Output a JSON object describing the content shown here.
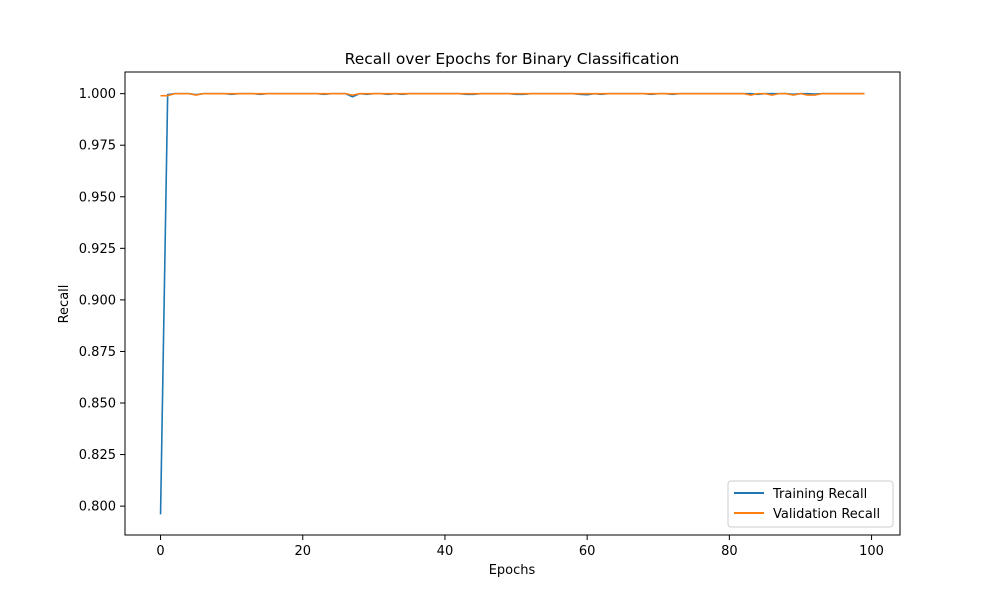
{
  "chart_data": {
    "type": "line",
    "title": "Recall over Epochs for Binary Classification",
    "xlabel": "Epochs",
    "ylabel": "Recall",
    "xlim": [
      -5,
      104
    ],
    "ylim": [
      0.786,
      1.0105
    ],
    "xticks": [
      0,
      20,
      40,
      60,
      80,
      100
    ],
    "yticks": [
      0.8,
      0.825,
      0.85,
      0.875,
      0.9,
      0.925,
      0.95,
      0.975,
      1.0
    ],
    "ytick_labels": [
      "0.800",
      "0.825",
      "0.850",
      "0.875",
      "0.900",
      "0.925",
      "0.950",
      "0.975",
      "1.000"
    ],
    "xtick_labels": [
      "0",
      "20",
      "40",
      "60",
      "80",
      "100"
    ],
    "grid": false,
    "legend_position": "lower-right",
    "series": [
      {
        "name": "Training Recall",
        "color": "#1f77b4",
        "x": [
          0,
          1,
          2,
          3,
          4,
          5,
          6,
          7,
          8,
          9,
          10,
          11,
          12,
          13,
          14,
          15,
          16,
          17,
          18,
          19,
          20,
          21,
          22,
          23,
          24,
          25,
          26,
          27,
          28,
          29,
          30,
          31,
          32,
          33,
          34,
          35,
          36,
          37,
          38,
          39,
          40,
          41,
          42,
          43,
          44,
          45,
          46,
          47,
          48,
          49,
          50,
          51,
          52,
          53,
          54,
          55,
          56,
          57,
          58,
          59,
          60,
          61,
          62,
          63,
          64,
          65,
          66,
          67,
          68,
          69,
          70,
          71,
          72,
          73,
          74,
          75,
          76,
          77,
          78,
          79,
          80,
          81,
          82,
          83,
          84,
          85,
          86,
          87,
          88,
          89,
          90,
          91,
          92,
          93,
          94,
          95,
          96,
          97,
          98,
          99
        ],
        "values": [
          0.796,
          0.9995,
          1.0,
          1.0,
          1.0,
          0.9995,
          1.0,
          1.0,
          1.0,
          1.0,
          0.9997,
          1.0,
          1.0,
          1.0,
          0.9997,
          1.0,
          1.0,
          1.0,
          1.0,
          1.0,
          1.0,
          1.0,
          1.0,
          0.9997,
          1.0,
          1.0,
          1.0,
          0.9985,
          1.0,
          0.9997,
          1.0,
          1.0,
          0.9997,
          1.0,
          0.9997,
          1.0,
          1.0,
          1.0,
          1.0,
          1.0,
          1.0,
          1.0,
          1.0,
          0.9997,
          0.9997,
          1.0,
          1.0,
          1.0,
          1.0,
          1.0,
          0.9997,
          0.9997,
          1.0,
          1.0,
          1.0,
          1.0,
          1.0,
          1.0,
          1.0,
          0.9997,
          0.9995,
          1.0,
          0.9997,
          1.0,
          1.0,
          1.0,
          1.0,
          1.0,
          1.0,
          0.9997,
          1.0,
          1.0,
          0.9997,
          1.0,
          1.0,
          1.0,
          1.0,
          1.0,
          1.0,
          1.0,
          1.0,
          1.0,
          1.0,
          1.0,
          0.9997,
          1.0,
          1.0,
          1.0,
          1.0,
          0.9997,
          1.0,
          1.0,
          0.9998,
          1.0,
          1.0,
          1.0,
          1.0,
          1.0,
          1.0,
          1.0
        ]
      },
      {
        "name": "Validation Recall",
        "color": "#ff7f0e",
        "x": [
          0,
          1,
          2,
          3,
          4,
          5,
          6,
          7,
          8,
          9,
          10,
          11,
          12,
          13,
          14,
          15,
          16,
          17,
          18,
          19,
          20,
          21,
          22,
          23,
          24,
          25,
          26,
          27,
          28,
          29,
          30,
          31,
          32,
          33,
          34,
          35,
          36,
          37,
          38,
          39,
          40,
          41,
          42,
          43,
          44,
          45,
          46,
          47,
          48,
          49,
          50,
          51,
          52,
          53,
          54,
          55,
          56,
          57,
          58,
          59,
          60,
          61,
          62,
          63,
          64,
          65,
          66,
          67,
          68,
          69,
          70,
          71,
          72,
          73,
          74,
          75,
          76,
          77,
          78,
          79,
          80,
          81,
          82,
          83,
          84,
          85,
          86,
          87,
          88,
          89,
          90,
          91,
          92,
          93,
          94,
          95,
          96,
          97,
          98,
          99
        ],
        "values": [
          0.999,
          0.999,
          1.0,
          1.0,
          1.0,
          0.9993,
          1.0,
          1.0,
          1.0,
          1.0,
          1.0,
          1.0,
          1.0,
          1.0,
          1.0,
          1.0,
          1.0,
          1.0,
          1.0,
          1.0,
          1.0,
          1.0,
          1.0,
          1.0,
          1.0,
          1.0,
          1.0,
          0.9993,
          1.0,
          1.0,
          1.0,
          1.0,
          1.0,
          1.0,
          1.0,
          1.0,
          1.0,
          1.0,
          1.0,
          1.0,
          1.0,
          1.0,
          1.0,
          1.0,
          1.0,
          1.0,
          1.0,
          1.0,
          1.0,
          1.0,
          1.0,
          1.0,
          1.0,
          1.0,
          1.0,
          1.0,
          1.0,
          1.0,
          1.0,
          1.0,
          1.0,
          1.0,
          1.0,
          1.0,
          1.0,
          1.0,
          1.0,
          1.0,
          1.0,
          1.0,
          1.0,
          1.0,
          1.0,
          1.0,
          1.0,
          1.0,
          1.0,
          1.0,
          1.0,
          1.0,
          1.0,
          1.0,
          1.0,
          0.9993,
          1.0,
          1.0,
          0.9993,
          1.0,
          1.0,
          0.9993,
          1.0,
          0.9993,
          0.9993,
          1.0,
          1.0,
          1.0,
          1.0,
          1.0,
          1.0,
          1.0
        ]
      }
    ]
  }
}
